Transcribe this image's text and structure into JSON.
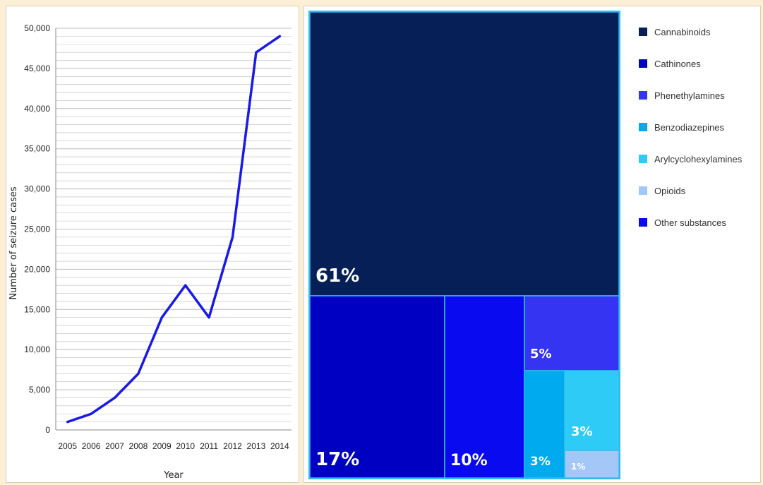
{
  "chart_data": [
    {
      "type": "line",
      "xlabel": "Year",
      "ylabel": "Number of seizure cases",
      "x": [
        "2005",
        "2006",
        "2007",
        "2008",
        "2009",
        "2010",
        "2011",
        "2012",
        "2013",
        "2014"
      ],
      "series": [
        {
          "values": [
            1000,
            2000,
            4000,
            7000,
            14000,
            18000,
            14000,
            24000,
            47000,
            49000
          ]
        }
      ],
      "ylim": [
        0,
        50000
      ],
      "yticks": [
        "0",
        "5,000",
        "10,000",
        "15,000",
        "20,000",
        "25,000",
        "30,000",
        "35,000",
        "40,000",
        "45,000",
        "50,000"
      ],
      "grid": true,
      "colors": {
        "line": "#1a1ae6",
        "grid": "#bdbdbd"
      }
    },
    {
      "type": "treemap",
      "legend_position": "right",
      "categories": [
        "Cannabinoids",
        "Cathinones",
        "Phenethylamines",
        "Benzodiazepines",
        "Arylcyclohexylamines",
        "Opioids",
        "Other substances"
      ],
      "values": [
        61,
        17,
        5,
        3,
        3,
        1,
        10
      ],
      "labels": [
        "61%",
        "17%",
        "5%",
        "3%",
        "3%",
        "1%",
        "10%"
      ],
      "colors": [
        "#062057",
        "#0000c2",
        "#3434f2",
        "#00aaee",
        "#2ecbf7",
        "#a3c8f7",
        "#0a0af0"
      ],
      "border_color": "#33bbee"
    }
  ]
}
